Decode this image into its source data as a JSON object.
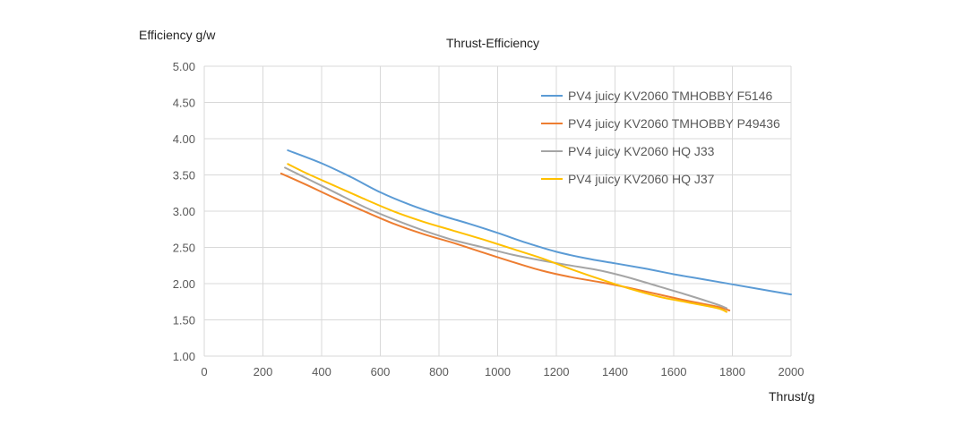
{
  "chart_data": {
    "type": "line",
    "title": "Thrust-Efficiency",
    "xlabel": "Thrust/g",
    "ylabel": "Efficiency g/w",
    "xlim": [
      0,
      2000
    ],
    "ylim": [
      1.0,
      5.0
    ],
    "xticks": [
      0,
      200,
      400,
      600,
      800,
      1000,
      1200,
      1400,
      1600,
      1800,
      2000
    ],
    "yticks": [
      "1.00",
      "1.50",
      "2.00",
      "2.50",
      "3.00",
      "3.50",
      "4.00",
      "4.50",
      "5.00"
    ],
    "grid": true,
    "legend_position": "top-right",
    "series": [
      {
        "name": "PV4 juicy KV2060 TMHOBBY F5146",
        "color": "#5B9BD5",
        "x": [
          285,
          400,
          500,
          600,
          700,
          800,
          900,
          1000,
          1100,
          1200,
          1300,
          1400,
          1500,
          1600,
          1700,
          1800,
          1900,
          2000
        ],
        "y": [
          3.84,
          3.66,
          3.47,
          3.26,
          3.09,
          2.95,
          2.83,
          2.7,
          2.56,
          2.44,
          2.35,
          2.28,
          2.21,
          2.13,
          2.06,
          1.99,
          1.92,
          1.85
        ]
      },
      {
        "name": "PV4 juicy KV2060 TMHOBBY P49436",
        "color": "#ED7D31",
        "x": [
          262,
          350,
          450,
          550,
          650,
          750,
          850,
          950,
          1050,
          1150,
          1250,
          1350,
          1450,
          1550,
          1650,
          1750,
          1790
        ],
        "y": [
          3.52,
          3.36,
          3.17,
          2.99,
          2.82,
          2.68,
          2.56,
          2.43,
          2.3,
          2.18,
          2.09,
          2.02,
          1.94,
          1.85,
          1.76,
          1.68,
          1.63
        ]
      },
      {
        "name": "PV4 juicy KV2060 HQ J33",
        "color": "#A5A5A5",
        "x": [
          275,
          350,
          450,
          550,
          650,
          750,
          850,
          950,
          1050,
          1150,
          1250,
          1350,
          1450,
          1550,
          1650,
          1750,
          1780
        ],
        "y": [
          3.6,
          3.45,
          3.25,
          3.05,
          2.88,
          2.73,
          2.6,
          2.5,
          2.4,
          2.32,
          2.25,
          2.18,
          2.08,
          1.96,
          1.84,
          1.71,
          1.66
        ]
      },
      {
        "name": "PV4 juicy KV2060 HQ J37",
        "color": "#FFC000",
        "x": [
          285,
          350,
          450,
          550,
          650,
          750,
          850,
          950,
          1050,
          1150,
          1250,
          1350,
          1450,
          1550,
          1650,
          1750,
          1780
        ],
        "y": [
          3.65,
          3.52,
          3.34,
          3.16,
          2.99,
          2.85,
          2.73,
          2.61,
          2.48,
          2.35,
          2.2,
          2.06,
          1.93,
          1.82,
          1.74,
          1.66,
          1.61
        ]
      }
    ]
  }
}
